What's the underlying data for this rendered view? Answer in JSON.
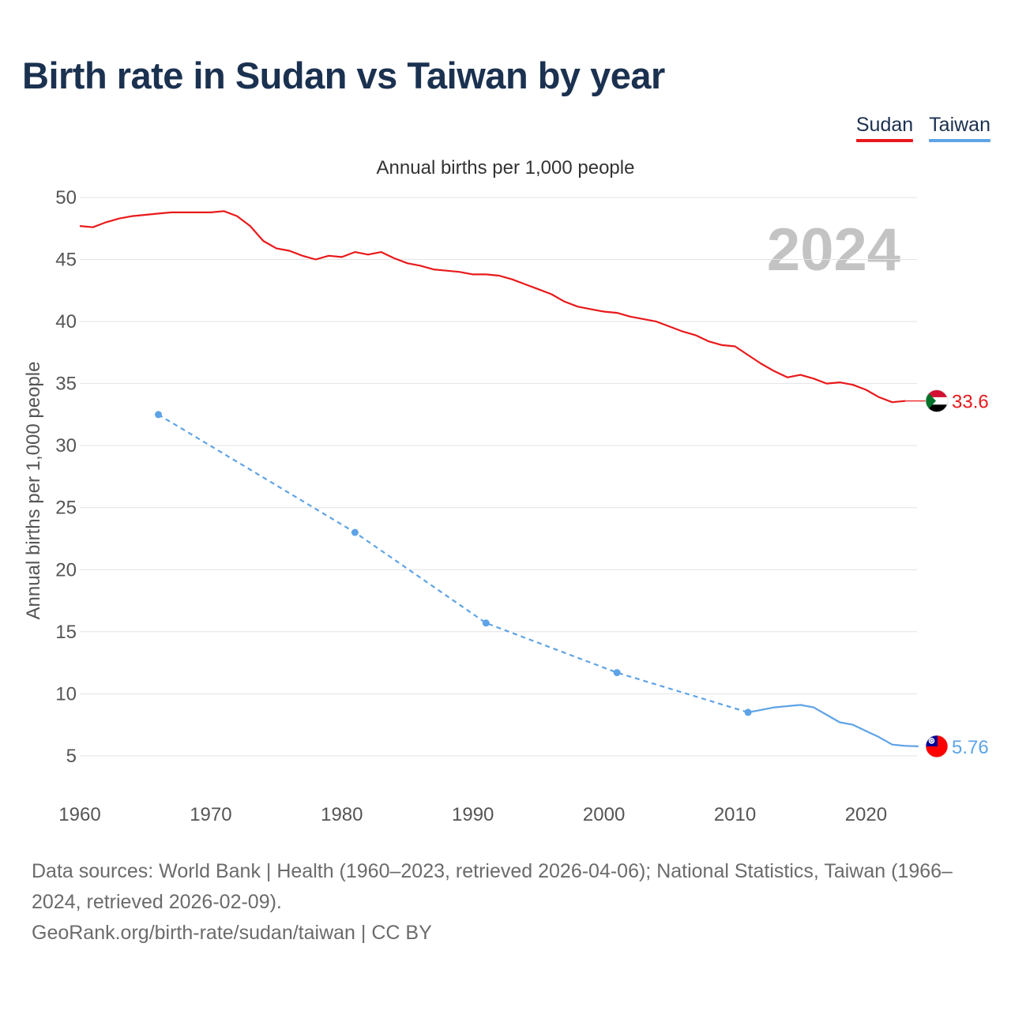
{
  "title": "Birth rate in Sudan vs Taiwan by year",
  "colors": {
    "sudan": "#e8191b",
    "taiwan": "#5ea3e6",
    "title": "#1b3150",
    "grid": "#e3e3e3",
    "axis_text": "#555555",
    "year_watermark": "#c3c3c3"
  },
  "footer": {
    "sources": "Data sources: World Bank | Health (1960–2023, retrieved 2026-04-06); National Statistics, Taiwan (1966–2024, retrieved 2026-02-09).",
    "credit": "GeoRank.org/birth-rate/sudan/taiwan | CC BY"
  },
  "chart_data": {
    "type": "line",
    "title": "Annual births per 1,000 people",
    "ylabel": "Annual births per 1,000 people",
    "xlabel": "",
    "year_label": "2024",
    "xlim": [
      1960,
      2025.4
    ],
    "ylim": [
      2,
      50
    ],
    "x_ticks": [
      1960,
      1970,
      1980,
      1990,
      2000,
      2010,
      2020
    ],
    "y_ticks": [
      5,
      10,
      15,
      20,
      25,
      30,
      35,
      40,
      45,
      50
    ],
    "legend": [
      "Sudan",
      "Taiwan"
    ],
    "series": [
      {
        "name": "Sudan",
        "flag": "sudan-flag",
        "end_label": "33.6",
        "end_value": 33.6,
        "x": [
          1960,
          1961,
          1962,
          1963,
          1964,
          1965,
          1966,
          1967,
          1968,
          1969,
          1970,
          1971,
          1972,
          1973,
          1974,
          1975,
          1976,
          1977,
          1978,
          1979,
          1980,
          1981,
          1982,
          1983,
          1984,
          1985,
          1986,
          1987,
          1988,
          1989,
          1990,
          1991,
          1992,
          1993,
          1994,
          1995,
          1996,
          1997,
          1998,
          1999,
          2000,
          2001,
          2002,
          2003,
          2004,
          2005,
          2006,
          2007,
          2008,
          2009,
          2010,
          2011,
          2012,
          2013,
          2014,
          2015,
          2016,
          2017,
          2018,
          2019,
          2020,
          2021,
          2022,
          2023
        ],
        "values": [
          47.7,
          47.6,
          48.0,
          48.3,
          48.5,
          48.6,
          48.7,
          48.8,
          48.8,
          48.8,
          48.8,
          48.9,
          48.5,
          47.7,
          46.5,
          45.9,
          45.7,
          45.3,
          45.0,
          45.3,
          45.2,
          45.6,
          45.4,
          45.6,
          45.1,
          44.7,
          44.5,
          44.2,
          44.1,
          44.0,
          43.8,
          43.8,
          43.7,
          43.4,
          43.0,
          42.6,
          42.2,
          41.6,
          41.2,
          41.0,
          40.8,
          40.7,
          40.4,
          40.2,
          40.0,
          39.6,
          39.2,
          38.9,
          38.4,
          38.1,
          38.0,
          37.3,
          36.6,
          36.0,
          35.5,
          35.7,
          35.4,
          35.0,
          35.1,
          34.9,
          34.5,
          33.9,
          33.5,
          33.6
        ]
      },
      {
        "name": "Taiwan",
        "flag": "taiwan-flag",
        "end_label": "5.76",
        "end_value": 5.76,
        "sparse_points": [
          [
            1966,
            32.5
          ],
          [
            1981,
            23.0
          ],
          [
            1991,
            15.7
          ],
          [
            2001,
            11.7
          ],
          [
            2011,
            8.5
          ]
        ],
        "x": [
          2011,
          2012,
          2013,
          2014,
          2015,
          2016,
          2017,
          2018,
          2019,
          2020,
          2021,
          2022,
          2023,
          2024
        ],
        "values": [
          8.5,
          8.7,
          8.9,
          9.0,
          9.1,
          8.9,
          8.3,
          7.7,
          7.5,
          7.0,
          6.5,
          5.9,
          5.8,
          5.76
        ]
      }
    ]
  }
}
